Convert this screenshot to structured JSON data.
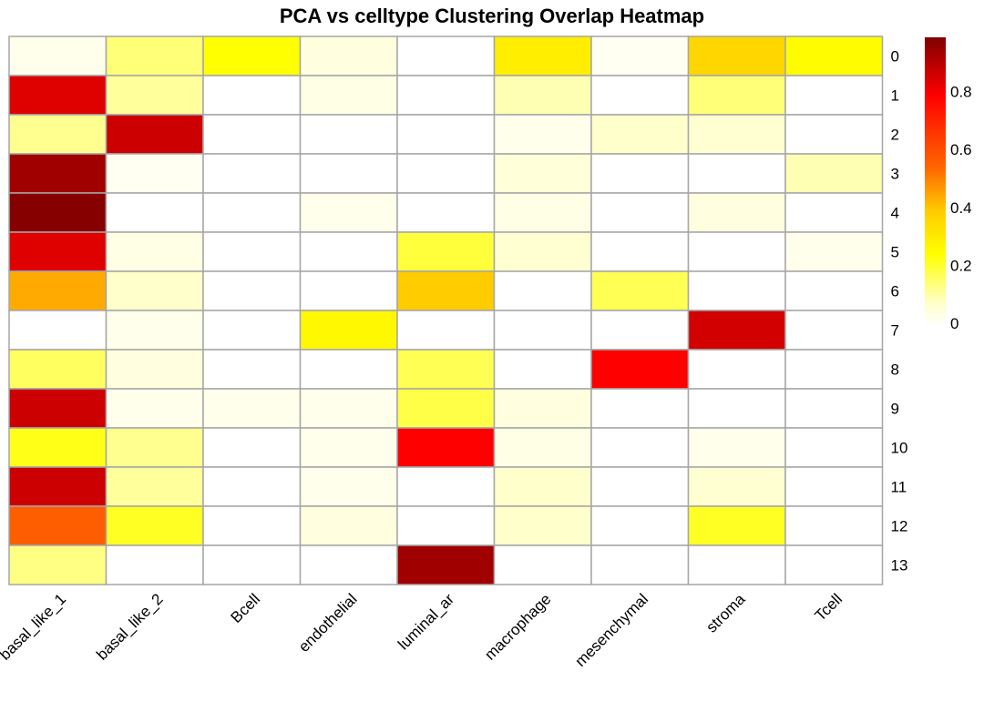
{
  "chart_data": {
    "type": "heatmap",
    "title": "PCA vs celltype Clustering Overlap Heatmap",
    "columns": [
      "basal_like_1",
      "basal_like_2",
      "Bcell",
      "endothelial",
      "luminal_ar",
      "macrophage",
      "mesenchymal",
      "stroma",
      "Tcell"
    ],
    "rows": [
      "0",
      "1",
      "2",
      "3",
      "4",
      "5",
      "6",
      "7",
      "8",
      "9",
      "10",
      "11",
      "12",
      "13"
    ],
    "values": [
      [
        0.03,
        0.15,
        0.25,
        0.05,
        0.0,
        0.3,
        0.02,
        0.37,
        0.26
      ],
      [
        0.85,
        0.12,
        0.0,
        0.04,
        0.0,
        0.1,
        0.0,
        0.15,
        0.0
      ],
      [
        0.13,
        0.88,
        0.0,
        0.0,
        0.0,
        0.03,
        0.08,
        0.07,
        0.0
      ],
      [
        0.95,
        0.02,
        0.0,
        0.0,
        0.0,
        0.06,
        0.0,
        0.0,
        0.1
      ],
      [
        0.99,
        0.0,
        0.0,
        0.03,
        0.0,
        0.04,
        0.0,
        0.05,
        0.0
      ],
      [
        0.85,
        0.04,
        0.0,
        0.0,
        0.2,
        0.07,
        0.0,
        0.0,
        0.03
      ],
      [
        0.45,
        0.08,
        0.0,
        0.0,
        0.4,
        0.0,
        0.18,
        0.0,
        0.0
      ],
      [
        0.0,
        0.03,
        0.0,
        0.27,
        0.0,
        0.0,
        0.0,
        0.87,
        0.0
      ],
      [
        0.17,
        0.05,
        0.0,
        0.0,
        0.18,
        0.0,
        0.8,
        0.0,
        0.0
      ],
      [
        0.88,
        0.03,
        0.03,
        0.03,
        0.19,
        0.05,
        0.0,
        0.0,
        0.0
      ],
      [
        0.23,
        0.13,
        0.0,
        0.03,
        0.8,
        0.04,
        0.0,
        0.03,
        0.0
      ],
      [
        0.88,
        0.12,
        0.0,
        0.03,
        0.0,
        0.08,
        0.0,
        0.07,
        0.0
      ],
      [
        0.57,
        0.22,
        0.0,
        0.05,
        0.0,
        0.08,
        0.0,
        0.22,
        0.0
      ],
      [
        0.14,
        0.0,
        0.0,
        0.0,
        0.95,
        0.0,
        0.0,
        0.0,
        0.0
      ]
    ],
    "color_scale": {
      "min": 0,
      "max": 1,
      "colors": [
        "#ffffff",
        "#ffffcc",
        "#ffff00",
        "#ffcc00",
        "#ff6600",
        "#ff0000",
        "#800000"
      ],
      "stops": [
        0,
        0.08,
        0.25,
        0.4,
        0.55,
        0.8,
        1.0
      ],
      "legend_ticks": [
        "0",
        "0.2",
        "0.4",
        "0.6",
        "0.8"
      ],
      "legend_tick_values": [
        0,
        0.2,
        0.4,
        0.6,
        0.8
      ]
    },
    "grid_color": "#a6a6a6"
  }
}
